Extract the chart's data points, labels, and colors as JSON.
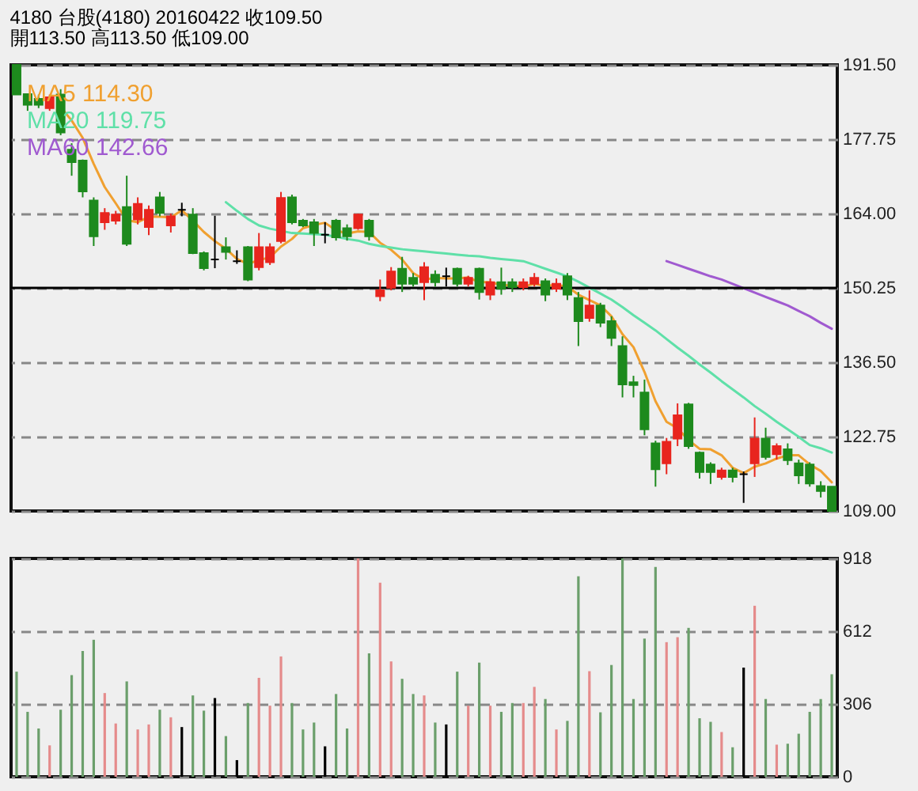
{
  "chart_data": [
    {
      "type": "candlestick",
      "title": "4180  台股(4180) 20160422  收109.50",
      "subtitle": "開113.50    高113.50    低109.00",
      "categories": [
        null,
        null,
        null,
        null,
        null,
        null,
        null,
        null,
        null,
        null,
        null,
        null,
        null,
        null,
        null,
        null,
        null,
        null,
        null,
        null,
        null,
        null,
        null,
        null,
        null,
        null,
        null,
        null,
        null,
        null,
        null,
        null,
        null,
        null,
        null,
        null,
        null,
        null,
        null,
        null,
        null,
        null,
        null,
        null,
        null,
        null,
        null,
        null,
        null,
        null,
        null,
        null,
        null,
        null,
        null,
        null,
        null,
        null,
        null,
        null,
        null,
        null,
        null,
        null,
        null,
        null,
        null,
        null,
        null,
        null,
        null,
        null,
        null,
        null,
        null
      ],
      "ohlc": [
        [
          191.5,
          191.5,
          186,
          186
        ],
        [
          186.1,
          186.1,
          183,
          184.1
        ],
        [
          185.2,
          186,
          183.5,
          184.1
        ],
        [
          183.5,
          186,
          183,
          185.5
        ],
        [
          186,
          187,
          178.5,
          179
        ],
        [
          175.8,
          177,
          171,
          173.5
        ],
        [
          173.8,
          174,
          167,
          168.1
        ],
        [
          166.4,
          167,
          158,
          159.8
        ],
        [
          162.4,
          165,
          161,
          164.1
        ],
        [
          162.7,
          164.5,
          162,
          163.8
        ],
        [
          165.2,
          171,
          158,
          158.4
        ],
        [
          162.9,
          167,
          162,
          165.8
        ],
        [
          161.5,
          165.5,
          160,
          164.7
        ],
        [
          167,
          168,
          163.5,
          164.1
        ],
        [
          161.8,
          164,
          160.5,
          163.5
        ],
        [
          164.7,
          166,
          163.5,
          164.7
        ],
        [
          163.8,
          165,
          156.5,
          156.7
        ],
        [
          156.7,
          157,
          153.5,
          153.9
        ],
        [
          155.5,
          163.6,
          153.9,
          155.5
        ],
        [
          157.8,
          159.6,
          155.5,
          156.9
        ],
        [
          155.2,
          157.2,
          154.7,
          155.2
        ],
        [
          157.8,
          158,
          151.5,
          151.8
        ],
        [
          154.1,
          160.4,
          153.5,
          157.8
        ],
        [
          155,
          158.5,
          154.5,
          157.8
        ],
        [
          158.9,
          168,
          158.5,
          166.9
        ],
        [
          167,
          167.5,
          162,
          162.4
        ],
        [
          162.7,
          163,
          161.5,
          161.8
        ],
        [
          162.4,
          163,
          158,
          160.4
        ],
        [
          160.1,
          162.4,
          158.5,
          160.1
        ],
        [
          162.7,
          163,
          159,
          159.6
        ],
        [
          161.3,
          162,
          159,
          159.8
        ],
        [
          161.3,
          164,
          161,
          163.8
        ],
        [
          162.7,
          163,
          159,
          159.8
        ],
        [
          148.7,
          151.8,
          147.8,
          149.8
        ],
        [
          150.3,
          154.1,
          149.8,
          153.3
        ],
        [
          153.8,
          156,
          149.5,
          151
        ],
        [
          152.1,
          153,
          150.5,
          151
        ],
        [
          151.3,
          155,
          148,
          154.1
        ],
        [
          152.7,
          153.5,
          150.5,
          151.3
        ],
        [
          152.4,
          154,
          150.5,
          152.4
        ],
        [
          153.8,
          154,
          150.5,
          151
        ],
        [
          151,
          152.5,
          150.5,
          152.1
        ],
        [
          153.8,
          154,
          148.1,
          149.5
        ],
        [
          149,
          152,
          148,
          151.3
        ],
        [
          151.3,
          154,
          149,
          150.1
        ],
        [
          151.3,
          152,
          149.5,
          150.4
        ],
        [
          150.4,
          152,
          149.8,
          151.3
        ],
        [
          151,
          153,
          150.5,
          152.1
        ],
        [
          151.5,
          152,
          147.8,
          149
        ],
        [
          150.1,
          152,
          149.5,
          151
        ],
        [
          152.4,
          153,
          148,
          149
        ],
        [
          148.4,
          149.5,
          139.5,
          144.1
        ],
        [
          144.7,
          149.8,
          144,
          147
        ],
        [
          147,
          147.5,
          143,
          143.8
        ],
        [
          144.1,
          145,
          139.5,
          141
        ],
        [
          139.5,
          141.3,
          130,
          132.4
        ],
        [
          132.8,
          134,
          130,
          132.3
        ],
        [
          130.9,
          133.3,
          123,
          124.1
        ],
        [
          121.5,
          122,
          113.5,
          116.7
        ],
        [
          117.8,
          122.5,
          115.8,
          121.8
        ],
        [
          122.4,
          128.9,
          121,
          126.7
        ],
        [
          128.7,
          129,
          120.5,
          121
        ],
        [
          119.8,
          120,
          115,
          116.2
        ],
        [
          117.6,
          118,
          114,
          116.2
        ],
        [
          115.3,
          117,
          114.8,
          116.5
        ],
        [
          116.5,
          117,
          114.3,
          115.3
        ],
        [
          115.8,
          116.3,
          110.5,
          115.8
        ],
        [
          117.8,
          126.3,
          115.3,
          122.4
        ],
        [
          122.4,
          124.4,
          118.5,
          119
        ],
        [
          119.5,
          121.5,
          118.5,
          121
        ],
        [
          120.4,
          121.5,
          117.5,
          118.4
        ],
        [
          117.8,
          118.5,
          114,
          115.6
        ],
        [
          117.6,
          118,
          113.5,
          114.1
        ],
        [
          113.6,
          114.5,
          111.5,
          112.7
        ],
        [
          113.5,
          113.5,
          109,
          109
        ]
      ],
      "colors": [
        "#1d8a1d",
        "#1d8a1d",
        "#1d8a1d",
        "#e8251e",
        "#1d8a1d",
        "#1d8a1d",
        "#1d8a1d",
        "#1d8a1d",
        "#e8251e",
        "#e8251e",
        "#1d8a1d",
        "#e8251e",
        "#e8251e",
        "#1d8a1d",
        "#e8251e",
        "#000000",
        "#1d8a1d",
        "#1d8a1d",
        "#000000",
        "#1d8a1d",
        "#000000",
        "#1d8a1d",
        "#e8251e",
        "#e8251e",
        "#e8251e",
        "#1d8a1d",
        "#1d8a1d",
        "#1d8a1d",
        "#000000",
        "#1d8a1d",
        "#1d8a1d",
        "#e8251e",
        "#1d8a1d",
        "#e8251e",
        "#e8251e",
        "#1d8a1d",
        "#1d8a1d",
        "#e8251e",
        "#1d8a1d",
        "#000000",
        "#1d8a1d",
        "#e8251e",
        "#1d8a1d",
        "#e8251e",
        "#1d8a1d",
        "#1d8a1d",
        "#e8251e",
        "#e8251e",
        "#1d8a1d",
        "#e8251e",
        "#1d8a1d",
        "#1d8a1d",
        "#e8251e",
        "#1d8a1d",
        "#1d8a1d",
        "#1d8a1d",
        "#1d8a1d",
        "#1d8a1d",
        "#1d8a1d",
        "#e8251e",
        "#e8251e",
        "#1d8a1d",
        "#1d8a1d",
        "#1d8a1d",
        "#e8251e",
        "#1d8a1d",
        "#000000",
        "#e8251e",
        "#1d8a1d",
        "#e8251e",
        "#1d8a1d",
        "#1d8a1d",
        "#1d8a1d",
        "#1d8a1d",
        "#1d8a1d"
      ],
      "series": [
        {
          "type": "line",
          "name": "MA5 114.30",
          "color": "#f0a030",
          "values": [
            null,
            null,
            null,
            null,
            183.7,
            181.2,
            178.0,
            173.2,
            168.9,
            165.9,
            162.8,
            162.4,
            163.4,
            163.4,
            163.3,
            164.6,
            162.7,
            160.6,
            158.9,
            157.5,
            155.6,
            154.7,
            155.4,
            155.9,
            157.9,
            159.3,
            161.3,
            161.9,
            162.3,
            160.9,
            160.3,
            160.7,
            160.6,
            158.6,
            157.3,
            155.5,
            153.0,
            151.8,
            152.1,
            152.0,
            152.0,
            152.2,
            151.3,
            151.3,
            150.8,
            150.7,
            150.5,
            151.0,
            150.6,
            150.8,
            150.5,
            149.0,
            148.0,
            147.0,
            145.0,
            141.7,
            139.3,
            134.7,
            129.3,
            125.5,
            124.3,
            122.1,
            120.5,
            120.4,
            119.3,
            117.0,
            116.0,
            117.2,
            117.8,
            118.7,
            119.3,
            119.3,
            117.6,
            116.4,
            114.3
          ]
        },
        {
          "type": "line",
          "name": "MA20 119.75",
          "color": "#5fe0a8",
          "values": [
            null,
            null,
            null,
            null,
            null,
            null,
            null,
            null,
            null,
            null,
            null,
            null,
            null,
            null,
            null,
            null,
            null,
            null,
            null,
            166.1,
            164.5,
            163,
            161.8,
            161.2,
            160.8,
            160.4,
            160.3,
            160.2,
            160.1,
            159.7,
            159.3,
            159,
            158.4,
            158,
            157.7,
            157.4,
            157.2,
            157,
            156.8,
            156.6,
            156.4,
            156.2,
            156.1,
            155.8,
            155.6,
            155.4,
            155.2,
            154.5,
            153.8,
            153.1,
            152.4,
            151.4,
            150.3,
            149.2,
            148.1,
            146.7,
            145.2,
            143.8,
            142.4,
            140.8,
            139.2,
            137.7,
            136.1,
            134.6,
            133,
            131.5,
            130,
            128.4,
            127,
            125.5,
            124.1,
            122.7,
            121.2,
            120.6,
            119.8
          ]
        },
        {
          "type": "line",
          "name": "MA60 142.66",
          "color": "#a05ad0",
          "values": [
            null,
            null,
            null,
            null,
            null,
            null,
            null,
            null,
            null,
            null,
            null,
            null,
            null,
            null,
            null,
            null,
            null,
            null,
            null,
            null,
            null,
            null,
            null,
            null,
            null,
            null,
            null,
            null,
            null,
            null,
            null,
            null,
            null,
            null,
            null,
            null,
            null,
            null,
            null,
            null,
            null,
            null,
            null,
            null,
            null,
            null,
            null,
            null,
            null,
            null,
            null,
            null,
            null,
            null,
            null,
            null,
            null,
            null,
            null,
            155.2,
            154.5,
            153.8,
            153.1,
            152.4,
            151.8,
            151,
            150.2,
            149.4,
            148.6,
            147.8,
            147,
            146,
            145,
            143.8,
            142.7
          ]
        }
      ],
      "ylim": [
        109,
        191.5
      ],
      "yticks": [
        {
          "value": 109,
          "label": "109.00"
        },
        {
          "value": 122.75,
          "label": "122.75"
        },
        {
          "value": 136.5,
          "label": "136.50"
        },
        {
          "value": 150.25,
          "label": "150.25"
        },
        {
          "value": 164,
          "label": "164.00"
        },
        {
          "value": 177.75,
          "label": "177.75"
        },
        {
          "value": 191.5,
          "label": "191.50"
        }
      ],
      "grid": "y",
      "legend": "top left",
      "tick_labels": "y",
      "ref_lines": [
        {
          "axis": "y",
          "value": 150.25,
          "color": "#000000"
        }
      ]
    },
    {
      "type": "bar",
      "categories": [
        null,
        null,
        null,
        null,
        null,
        null,
        null,
        null,
        null,
        null,
        null,
        null,
        null,
        null,
        null,
        null,
        null,
        null,
        null,
        null,
        null,
        null,
        null,
        null,
        null,
        null,
        null,
        null,
        null,
        null,
        null,
        null,
        null,
        null,
        null,
        null,
        null,
        null,
        null,
        null,
        null,
        null,
        null,
        null,
        null,
        null,
        null,
        null,
        null,
        null,
        null,
        null,
        null,
        null,
        null,
        null,
        null,
        null,
        null,
        null,
        null,
        null,
        null,
        null,
        null,
        null,
        null,
        null,
        null,
        null,
        null,
        null,
        null,
        null,
        null
      ],
      "values": [
        442,
        273,
        203,
        132,
        282,
        427,
        529,
        576,
        352,
        224,
        401,
        199,
        220,
        282,
        250,
        209,
        342,
        278,
        331,
        171,
        70,
        310,
        416,
        299,
        506,
        310,
        199,
        228,
        128,
        348,
        203,
        918,
        519,
        816,
        485,
        412,
        348,
        342,
        228,
        220,
        442,
        299,
        480,
        299,
        273,
        310,
        310,
        378,
        327,
        199,
        235,
        843,
        444,
        271,
        470,
        918,
        327,
        581,
        882,
        566,
        587,
        626,
        246,
        231,
        188,
        124,
        459,
        719,
        327,
        135,
        139,
        181,
        273,
        327,
        431
      ],
      "colors": [
        "#6b9f6b",
        "#6b9f6b",
        "#6b9f6b",
        "#e58b8b",
        "#6b9f6b",
        "#6b9f6b",
        "#6b9f6b",
        "#6b9f6b",
        "#e58b8b",
        "#e58b8b",
        "#6b9f6b",
        "#e58b8b",
        "#e58b8b",
        "#6b9f6b",
        "#e58b8b",
        "#000000",
        "#6b9f6b",
        "#6b9f6b",
        "#000000",
        "#6b9f6b",
        "#000000",
        "#6b9f6b",
        "#e58b8b",
        "#e58b8b",
        "#e58b8b",
        "#6b9f6b",
        "#6b9f6b",
        "#6b9f6b",
        "#000000",
        "#6b9f6b",
        "#6b9f6b",
        "#e58b8b",
        "#6b9f6b",
        "#e58b8b",
        "#e58b8b",
        "#6b9f6b",
        "#6b9f6b",
        "#e58b8b",
        "#6b9f6b",
        "#000000",
        "#6b9f6b",
        "#e58b8b",
        "#6b9f6b",
        "#e58b8b",
        "#6b9f6b",
        "#6b9f6b",
        "#e58b8b",
        "#e58b8b",
        "#6b9f6b",
        "#e58b8b",
        "#6b9f6b",
        "#6b9f6b",
        "#e58b8b",
        "#6b9f6b",
        "#6b9f6b",
        "#6b9f6b",
        "#6b9f6b",
        "#6b9f6b",
        "#6b9f6b",
        "#e58b8b",
        "#e58b8b",
        "#6b9f6b",
        "#6b9f6b",
        "#6b9f6b",
        "#e58b8b",
        "#6b9f6b",
        "#000000",
        "#e58b8b",
        "#6b9f6b",
        "#e58b8b",
        "#6b9f6b",
        "#6b9f6b",
        "#6b9f6b",
        "#6b9f6b",
        "#6b9f6b"
      ],
      "ylim": [
        0,
        918
      ],
      "yticks": [
        0,
        306,
        612,
        918
      ],
      "grid": "y",
      "tick_labels": "y"
    }
  ]
}
